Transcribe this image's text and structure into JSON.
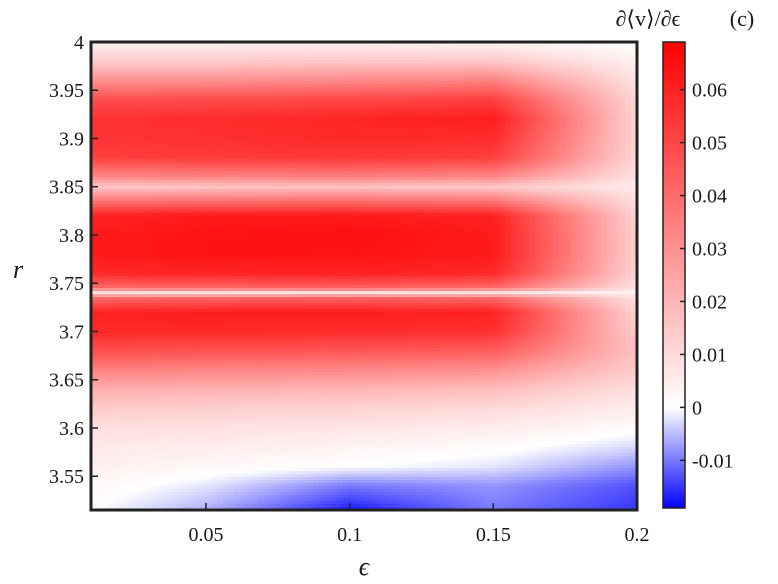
{
  "chart_data": {
    "type": "heatmap",
    "panel_label": "(c)",
    "xlabel": "ϵ",
    "ylabel": "r",
    "colorbar_label": "∂⟨v⟩/∂ϵ",
    "xlim": [
      0.01,
      0.2
    ],
    "ylim": [
      3.515,
      4.0
    ],
    "zlim": [
      -0.019,
      0.069
    ],
    "x_ticks": [
      0.05,
      0.1,
      0.15,
      0.2
    ],
    "x_tick_labels": [
      "0.05",
      "0.1",
      "0.15",
      "0.2"
    ],
    "y_ticks": [
      3.55,
      3.6,
      3.65,
      3.7,
      3.75,
      3.8,
      3.85,
      3.9,
      3.95,
      4.0
    ],
    "y_tick_labels": [
      "3.55",
      "3.6",
      "3.65",
      "3.7",
      "3.75",
      "3.8",
      "3.85",
      "3.9",
      "3.95",
      "4"
    ],
    "colorbar_ticks": [
      -0.01,
      0,
      0.01,
      0.02,
      0.03,
      0.04,
      0.05,
      0.06
    ],
    "colorbar_tick_labels": [
      "-0.01",
      "0",
      "0.01",
      "0.02",
      "0.03",
      "0.04",
      "0.05",
      "0.06"
    ],
    "colormap": {
      "negative": "#0000ff",
      "zero": "#ffffff",
      "positive": "#ff0000"
    },
    "grid_x": [
      0.01,
      0.05,
      0.1,
      0.15,
      0.2
    ],
    "grid_y": [
      3.515,
      3.54,
      3.56,
      3.58,
      3.6,
      3.62,
      3.64,
      3.66,
      3.68,
      3.7,
      3.72,
      3.735,
      3.74,
      3.745,
      3.76,
      3.78,
      3.8,
      3.82,
      3.84,
      3.85,
      3.86,
      3.88,
      3.9,
      3.92,
      3.94,
      3.96,
      3.98,
      4.0
    ],
    "values": [
      [
        0.0,
        -0.006,
        -0.017,
        -0.01,
        -0.015
      ],
      [
        0.002,
        -0.002,
        -0.01,
        -0.008,
        -0.013
      ],
      [
        0.004,
        0.002,
        0.0,
        -0.002,
        -0.008
      ],
      [
        0.006,
        0.005,
        0.003,
        0.001,
        -0.003
      ],
      [
        0.009,
        0.008,
        0.007,
        0.005,
        0.001
      ],
      [
        0.014,
        0.013,
        0.012,
        0.01,
        0.005
      ],
      [
        0.022,
        0.021,
        0.02,
        0.018,
        0.009
      ],
      [
        0.034,
        0.033,
        0.032,
        0.03,
        0.014
      ],
      [
        0.048,
        0.047,
        0.046,
        0.044,
        0.017
      ],
      [
        0.058,
        0.058,
        0.057,
        0.056,
        0.014
      ],
      [
        0.06,
        0.061,
        0.061,
        0.06,
        0.012
      ],
      [
        0.04,
        0.041,
        0.042,
        0.04,
        0.008
      ],
      [
        0.006,
        0.006,
        0.006,
        0.006,
        0.003
      ],
      [
        0.04,
        0.041,
        0.042,
        0.04,
        0.008
      ],
      [
        0.058,
        0.059,
        0.06,
        0.058,
        0.012
      ],
      [
        0.062,
        0.064,
        0.064,
        0.062,
        0.013
      ],
      [
        0.062,
        0.064,
        0.065,
        0.062,
        0.013
      ],
      [
        0.06,
        0.062,
        0.062,
        0.06,
        0.012
      ],
      [
        0.03,
        0.031,
        0.032,
        0.03,
        0.008
      ],
      [
        0.015,
        0.016,
        0.016,
        0.015,
        0.005
      ],
      [
        0.032,
        0.033,
        0.034,
        0.032,
        0.008
      ],
      [
        0.052,
        0.053,
        0.054,
        0.052,
        0.011
      ],
      [
        0.055,
        0.056,
        0.058,
        0.057,
        0.012
      ],
      [
        0.056,
        0.057,
        0.059,
        0.061,
        0.012
      ],
      [
        0.048,
        0.049,
        0.05,
        0.052,
        0.011
      ],
      [
        0.03,
        0.03,
        0.032,
        0.034,
        0.008
      ],
      [
        0.014,
        0.014,
        0.015,
        0.015,
        0.004
      ],
      [
        0.004,
        0.004,
        0.004,
        0.003,
        0.0
      ]
    ]
  }
}
